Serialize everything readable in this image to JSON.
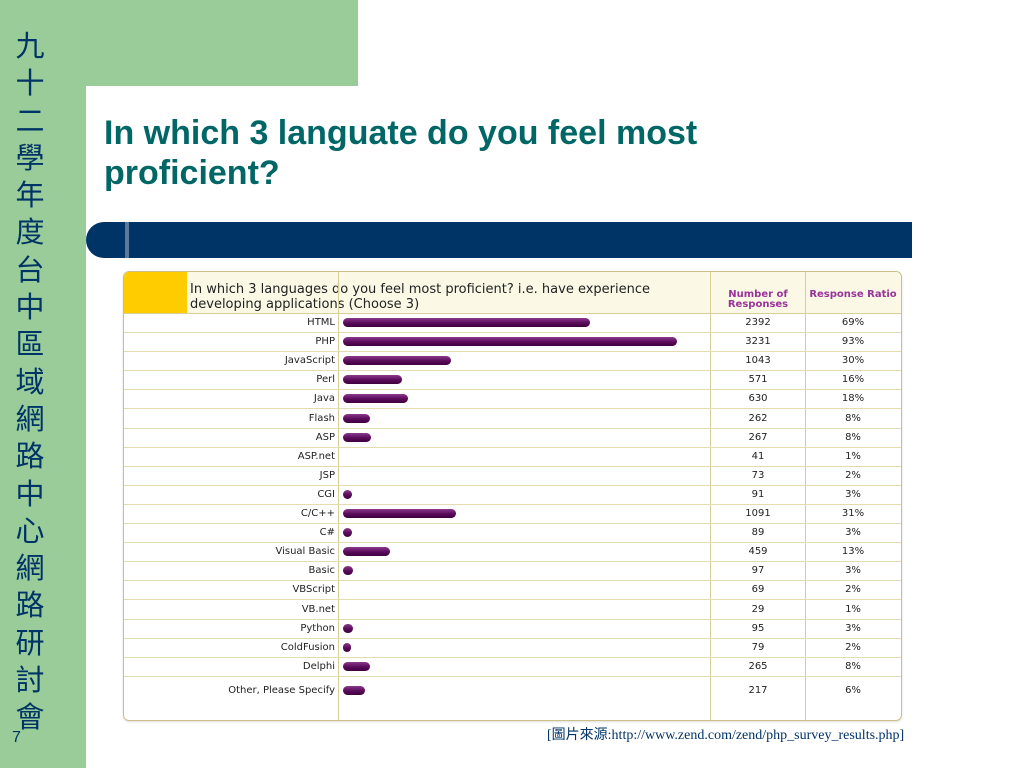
{
  "slide": {
    "vertical_title": [
      "九",
      "十",
      "二",
      "學",
      "年",
      "度",
      "台",
      "中",
      "區",
      "域",
      "網",
      "路",
      "中",
      "心",
      "網",
      "路",
      "研",
      "討",
      "會"
    ],
    "title": "In which 3 languate do you feel most proficient?",
    "number": "7",
    "source": "[圖片來源:http://www.zend.com/zend/php_survey_results.php]"
  },
  "colors": {
    "sidebar": "#99cc99",
    "navy": "#003366",
    "title": "#006666",
    "bar": "#5a0b5a",
    "header_swatch": "#ffcc00",
    "header_text": "#993399"
  },
  "chart_data": {
    "type": "bar",
    "orientation": "horizontal",
    "question": "In which 3 languages do you feel most proficient? i.e. have experience developing applications (Choose 3)",
    "count_header": "Number of Responses",
    "ratio_header": "Response Ratio",
    "categories": [
      "HTML",
      "PHP",
      "JavaScript",
      "Perl",
      "Java",
      "Flash",
      "ASP",
      "ASP.net",
      "JSP",
      "CGI",
      "C/C++",
      "C#",
      "Visual Basic",
      "Basic",
      "VBScript",
      "VB.net",
      "Python",
      "ColdFusion",
      "Delphi",
      "Other, Please Specify"
    ],
    "counts": [
      "2392",
      "3231",
      "1043",
      "571",
      "630",
      "262",
      "267",
      "41",
      "73",
      "91",
      "1091",
      "89",
      "459",
      "97",
      "69",
      "29",
      "95",
      "79",
      "265",
      "217"
    ],
    "ratios": [
      "69%",
      "93%",
      "30%",
      "16%",
      "18%",
      "8%",
      "8%",
      "1%",
      "2%",
      "3%",
      "31%",
      "3%",
      "13%",
      "3%",
      "2%",
      "1%",
      "3%",
      "2%",
      "8%",
      "6%"
    ],
    "values": [
      2392,
      3231,
      1043,
      571,
      630,
      262,
      267,
      41,
      73,
      91,
      1091,
      89,
      459,
      97,
      69,
      29,
      95,
      79,
      265,
      217
    ],
    "xlim": [
      0,
      3480
    ]
  }
}
